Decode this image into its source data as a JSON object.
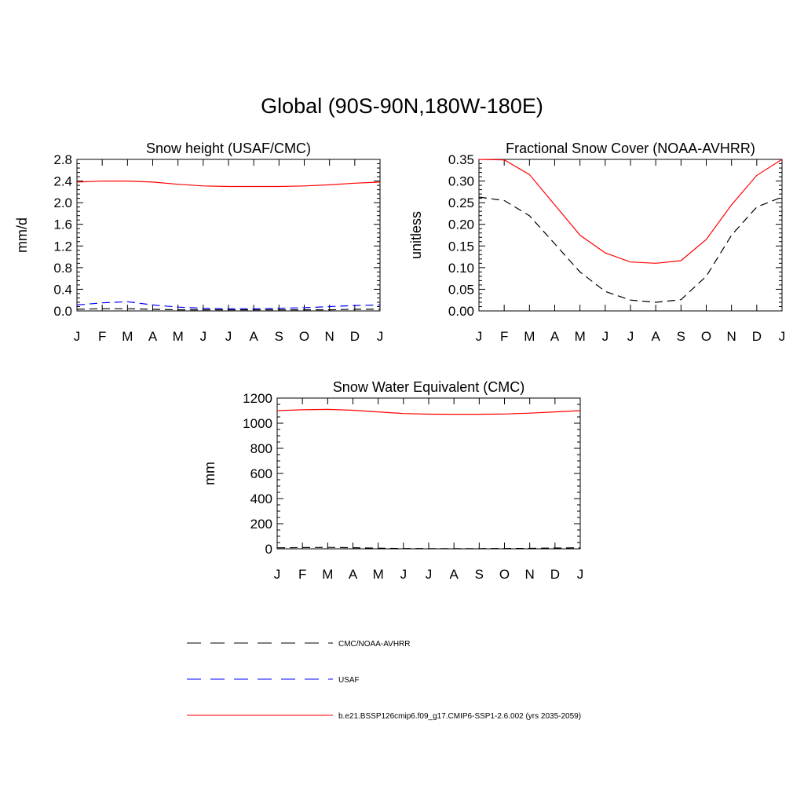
{
  "figure": {
    "title": "Global (90S-90N,180W-180E)"
  },
  "legend": {
    "entries": [
      {
        "label": "CMC/NOAA-AVHRR",
        "color": "#000000",
        "dash": "dashed"
      },
      {
        "label": "USAF",
        "color": "#0000ff",
        "dash": "dashed"
      },
      {
        "label": "b.e21.BSSP126cmip6.f09_g17.CMIP6-SSP1-2.6.002 (yrs 2035-2059)",
        "color": "#ff0000",
        "dash": "solid"
      }
    ]
  },
  "chart_data": [
    {
      "type": "line",
      "title": "Snow height (USAF/CMC)",
      "ylabel": "mm/d",
      "xlabel": "",
      "categories": [
        "J",
        "F",
        "M",
        "A",
        "M",
        "J",
        "J",
        "A",
        "S",
        "O",
        "N",
        "D",
        "J"
      ],
      "ylim": [
        0,
        2.8
      ],
      "yticks": [
        0.0,
        0.4,
        0.8,
        1.2,
        1.6,
        2.0,
        2.4,
        2.8
      ],
      "ytick_labels": [
        "0.0",
        "0.4",
        "0.8",
        "1.2",
        "1.6",
        "2.0",
        "2.4",
        "2.8"
      ],
      "minor_yticks": 4,
      "series": [
        {
          "name": "CMC/NOAA-AVHRR",
          "color": "#000000",
          "dash": "dashed",
          "values": [
            0.03,
            0.04,
            0.04,
            0.03,
            0.02,
            0.02,
            0.02,
            0.02,
            0.02,
            0.02,
            0.02,
            0.03,
            0.03
          ]
        },
        {
          "name": "USAF",
          "color": "#0000ff",
          "dash": "dashed",
          "values": [
            0.11,
            0.15,
            0.17,
            0.11,
            0.07,
            0.05,
            0.04,
            0.04,
            0.05,
            0.06,
            0.08,
            0.1,
            0.11
          ]
        },
        {
          "name": "b.e21.BSSP126cmip6.f09_g17.CMIP6-SSP1-2.6.002 (yrs 2035-2059)",
          "color": "#ff0000",
          "dash": "solid",
          "values": [
            2.38,
            2.4,
            2.4,
            2.38,
            2.34,
            2.31,
            2.3,
            2.3,
            2.3,
            2.31,
            2.33,
            2.36,
            2.38
          ]
        }
      ]
    },
    {
      "type": "line",
      "title": "Fractional Snow Cover (NOAA-AVHRR)",
      "ylabel": "unitless",
      "xlabel": "",
      "categories": [
        "J",
        "F",
        "M",
        "A",
        "M",
        "J",
        "J",
        "A",
        "S",
        "O",
        "N",
        "D",
        "J"
      ],
      "ylim": [
        0,
        0.35
      ],
      "yticks": [
        0.0,
        0.05,
        0.1,
        0.15,
        0.2,
        0.25,
        0.3,
        0.35
      ],
      "ytick_labels": [
        "0.00",
        "0.05",
        "0.10",
        "0.15",
        "0.20",
        "0.25",
        "0.30",
        "0.35"
      ],
      "minor_yticks": 4,
      "series": [
        {
          "name": "CMC/NOAA-AVHRR",
          "color": "#000000",
          "dash": "dashed",
          "values": [
            0.263,
            0.255,
            0.22,
            0.155,
            0.09,
            0.045,
            0.025,
            0.02,
            0.026,
            0.08,
            0.175,
            0.24,
            0.263
          ]
        },
        {
          "name": "b.e21.BSSP126cmip6.f09_g17.CMIP6-SSP1-2.6.002 (yrs 2035-2059)",
          "color": "#ff0000",
          "dash": "solid",
          "values": [
            0.35,
            0.349,
            0.315,
            0.245,
            0.175,
            0.134,
            0.113,
            0.11,
            0.116,
            0.165,
            0.245,
            0.313,
            0.35
          ]
        }
      ]
    },
    {
      "type": "line",
      "title": "Snow Water Equivalent (CMC)",
      "ylabel": "mm",
      "xlabel": "",
      "categories": [
        "J",
        "F",
        "M",
        "A",
        "M",
        "J",
        "J",
        "A",
        "S",
        "O",
        "N",
        "D",
        "J"
      ],
      "ylim": [
        0,
        1200
      ],
      "yticks": [
        0,
        200,
        400,
        600,
        800,
        1000,
        1200
      ],
      "ytick_labels": [
        "0",
        "200",
        "400",
        "600",
        "800",
        "1000",
        "1200"
      ],
      "minor_yticks": 3,
      "series": [
        {
          "name": "CMC/NOAA-AVHRR",
          "color": "#000000",
          "dash": "dashed",
          "values": [
            8,
            10,
            11,
            9,
            5,
            2,
            1,
            1,
            1,
            2,
            3,
            6,
            8
          ]
        },
        {
          "name": "b.e21.BSSP126cmip6.f09_g17.CMIP6-SSP1-2.6.002 (yrs 2035-2059)",
          "color": "#ff0000",
          "dash": "solid",
          "values": [
            1100,
            1107,
            1110,
            1103,
            1090,
            1077,
            1072,
            1071,
            1071,
            1073,
            1080,
            1090,
            1100
          ]
        }
      ]
    }
  ]
}
